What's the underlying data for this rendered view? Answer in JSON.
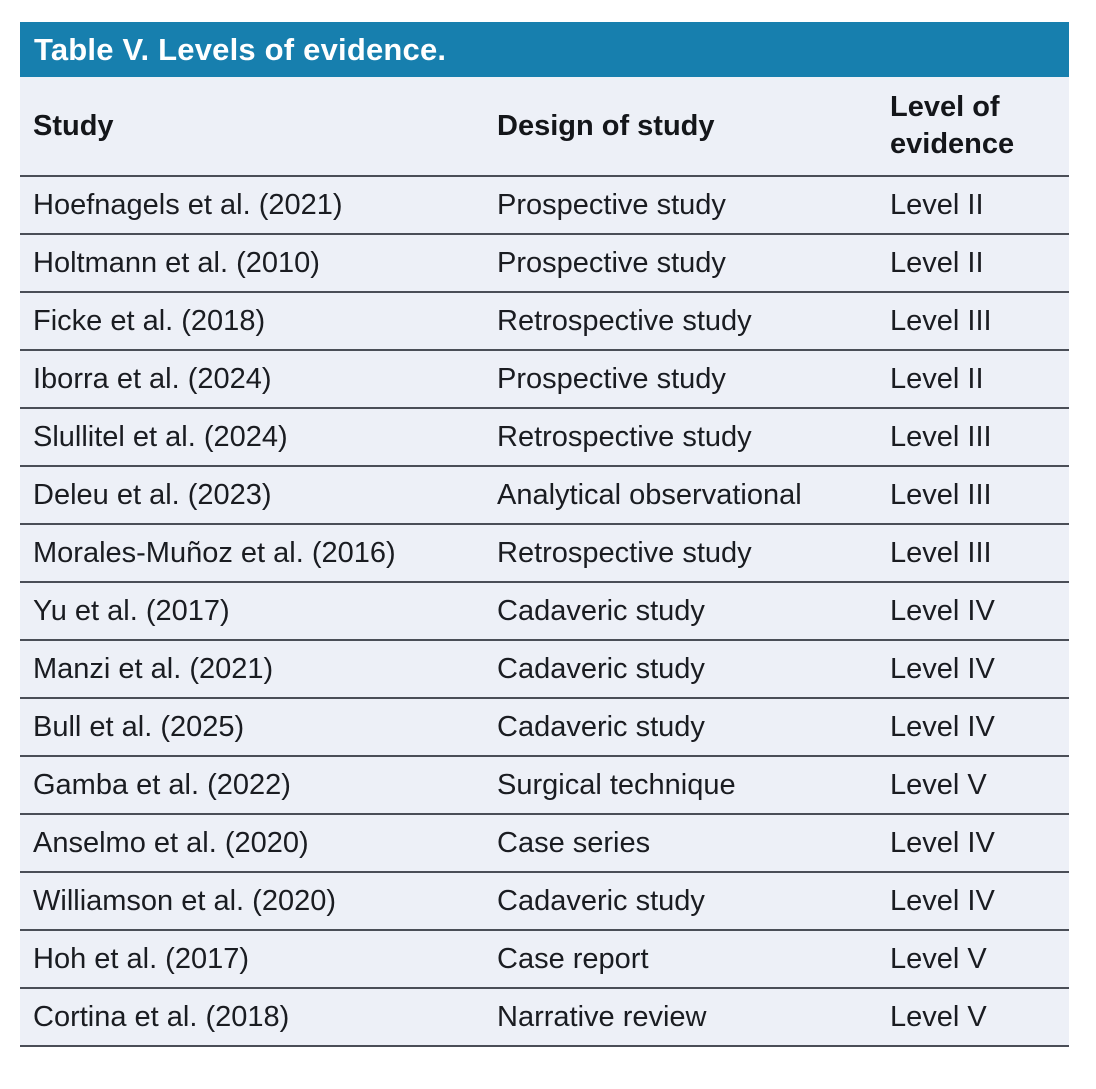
{
  "table": {
    "title": "Table V. Levels of evidence.",
    "columns": {
      "study": "Study",
      "design": "Design of study",
      "level": "Level of evidence"
    },
    "rows": [
      {
        "study": "Hoefnagels et al. (2021)",
        "design": "Prospective study",
        "level": "Level II"
      },
      {
        "study": "Holtmann et al. (2010)",
        "design": "Prospective study",
        "level": "Level II"
      },
      {
        "study": "Ficke et al. (2018)",
        "design": "Retrospective study",
        "level": "Level III"
      },
      {
        "study": "Iborra et al. (2024)",
        "design": "Prospective study",
        "level": "Level II"
      },
      {
        "study": "Slullitel et al. (2024)",
        "design": "Retrospective study",
        "level": "Level III"
      },
      {
        "study": "Deleu et al. (2023)",
        "design": "Analytical observational",
        "level": "Level III"
      },
      {
        "study": "Morales-Muñoz et al. (2016)",
        "design": "Retrospective study",
        "level": "Level III"
      },
      {
        "study": "Yu et al. (2017)",
        "design": "Cadaveric study",
        "level": "Level IV"
      },
      {
        "study": "Manzi et al. (2021)",
        "design": "Cadaveric study",
        "level": "Level IV"
      },
      {
        "study": "Bull et al. (2025)",
        "design": "Cadaveric study",
        "level": "Level IV"
      },
      {
        "study": "Gamba et al. (2022)",
        "design": "Surgical technique",
        "level": "Level V"
      },
      {
        "study": "Anselmo et al. (2020)",
        "design": "Case series",
        "level": "Level IV"
      },
      {
        "study": "Williamson et al. (2020)",
        "design": "Cadaveric study",
        "level": "Level IV"
      },
      {
        "study": "Hoh et al. (2017)",
        "design": "Case report",
        "level": "Level V"
      },
      {
        "study": "Cortina et al. (2018)",
        "design": "Narrative review",
        "level": "Level V"
      }
    ]
  },
  "colors": {
    "banner_blue": "#177FAE",
    "row_background": "#EDF0F7",
    "divider": "#4A4E57",
    "body_text": "#1A1C21",
    "title_text": "#FFFFFF"
  }
}
